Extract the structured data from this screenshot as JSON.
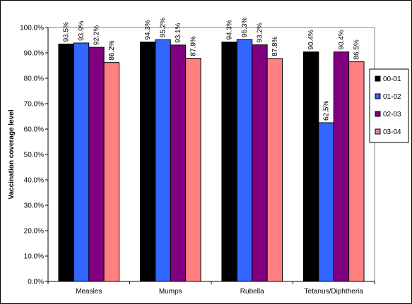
{
  "chart_data": {
    "type": "bar",
    "title": "",
    "xlabel": "",
    "ylabel": "Vaccination coverage level",
    "categories": [
      "Measles",
      "Mumps",
      "Rubella",
      "Tetanus/Diphtheria"
    ],
    "series": [
      {
        "name": "00-01",
        "color": "#000000",
        "values": [
          93.5,
          94.3,
          94.3,
          90.4
        ],
        "labels": [
          "93.5%",
          "94.3%",
          "94.3%",
          "90.4%"
        ]
      },
      {
        "name": "01-02",
        "color": "#3366FF",
        "values": [
          93.9,
          95.2,
          95.3,
          62.5
        ],
        "labels": [
          "93.9%",
          "95.2%",
          "95.3%",
          "62.5%"
        ]
      },
      {
        "name": "02-03",
        "color": "#800080",
        "values": [
          92.2,
          93.1,
          93.2,
          90.4
        ],
        "labels": [
          "92.2%",
          "93.1%",
          "93.2%",
          "90.4%"
        ]
      },
      {
        "name": "03-04",
        "color": "#FF8080",
        "values": [
          86.2,
          87.9,
          87.8,
          86.5
        ],
        "labels": [
          "86.2%",
          "87.9%",
          "87.8%",
          "86.5%"
        ]
      }
    ],
    "ylim": [
      0,
      100
    ],
    "yticks": [
      "0.0%",
      "10.0%",
      "20.0%",
      "30.0%",
      "40.0%",
      "50.0%",
      "60.0%",
      "70.0%",
      "80.0%",
      "90.0%",
      "100.0%"
    ],
    "grid": false,
    "legend_position": "right"
  }
}
